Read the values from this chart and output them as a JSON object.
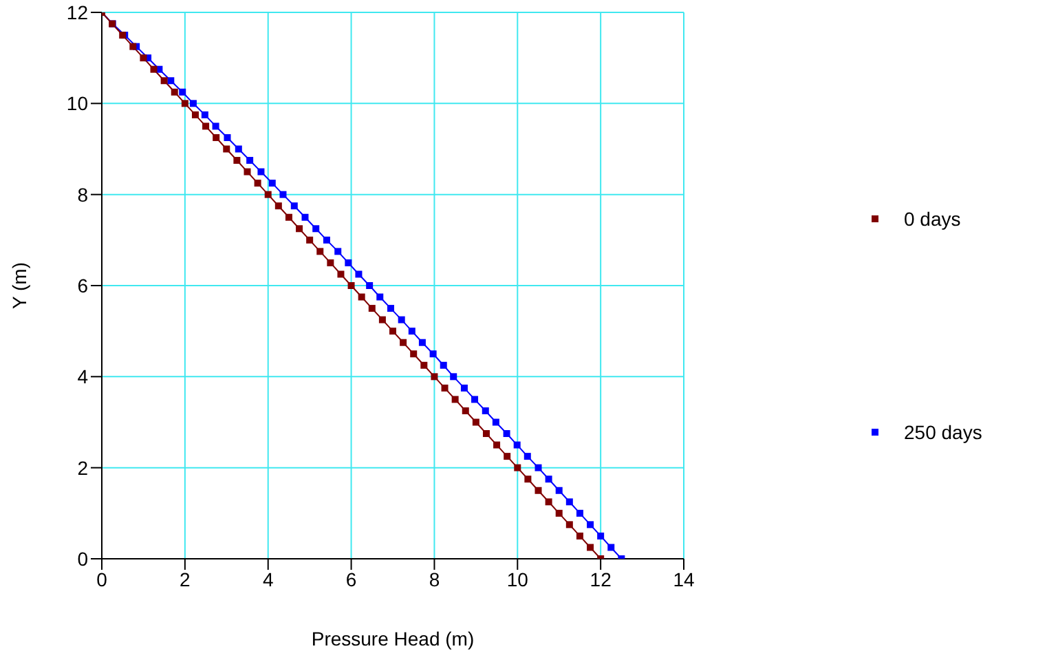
{
  "chart_data": {
    "type": "line",
    "xlabel": "Pressure Head (m)",
    "ylabel": "Y (m)",
    "xlim": [
      0,
      14
    ],
    "ylim": [
      0,
      12
    ],
    "xticks": [
      0,
      2,
      4,
      6,
      8,
      10,
      12,
      14
    ],
    "yticks": [
      0,
      2,
      4,
      6,
      8,
      10,
      12
    ],
    "grid": true,
    "legend": "right",
    "marker": "square",
    "series": [
      {
        "name": "0 days",
        "color": "#800000",
        "x": [
          0,
          0.25,
          0.5,
          0.75,
          1,
          1.25,
          1.5,
          1.75,
          2,
          2.25,
          2.5,
          2.75,
          3,
          3.25,
          3.5,
          3.75,
          4,
          4.25,
          4.5,
          4.75,
          5,
          5.25,
          5.5,
          5.75,
          6,
          6.25,
          6.5,
          6.75,
          7,
          7.25,
          7.5,
          7.75,
          8,
          8.25,
          8.5,
          8.75,
          9,
          9.25,
          9.5,
          9.75,
          10,
          10.25,
          10.5,
          10.75,
          11,
          11.25,
          11.5,
          11.75,
          12
        ],
        "values": [
          12,
          11.75,
          11.5,
          11.25,
          11,
          10.75,
          10.5,
          10.25,
          10,
          9.75,
          9.5,
          9.25,
          9,
          8.75,
          8.5,
          8.25,
          8,
          7.75,
          7.5,
          7.25,
          7,
          6.75,
          6.5,
          6.25,
          6,
          5.75,
          5.5,
          5.25,
          5,
          4.75,
          4.5,
          4.25,
          4,
          3.75,
          3.5,
          3.25,
          3,
          2.75,
          2.5,
          2.25,
          2,
          1.75,
          1.5,
          1.25,
          1,
          0.75,
          0.5,
          0.25,
          0
        ]
      },
      {
        "name": "250 days",
        "color": "#0000ff",
        "x": [
          0,
          0.26,
          0.55,
          0.83,
          1.11,
          1.38,
          1.66,
          1.94,
          2.2,
          2.48,
          2.74,
          3.02,
          3.29,
          3.56,
          3.83,
          4.1,
          4.36,
          4.63,
          4.89,
          5.15,
          5.41,
          5.68,
          5.93,
          6.18,
          6.44,
          6.69,
          6.95,
          7.21,
          7.46,
          7.71,
          7.97,
          8.22,
          8.46,
          8.72,
          8.97,
          9.23,
          9.48,
          9.74,
          9.99,
          10.24,
          10.5,
          10.75,
          11,
          11.25,
          11.5,
          11.75,
          12,
          12.25,
          12.5
        ],
        "values": [
          12,
          11.75,
          11.5,
          11.25,
          11,
          10.75,
          10.5,
          10.25,
          10,
          9.75,
          9.5,
          9.25,
          9,
          8.75,
          8.5,
          8.25,
          8,
          7.75,
          7.5,
          7.25,
          7,
          6.75,
          6.5,
          6.25,
          6,
          5.75,
          5.5,
          5.25,
          5,
          4.75,
          4.5,
          4.25,
          4,
          3.75,
          3.5,
          3.25,
          3,
          2.75,
          2.5,
          2.25,
          2,
          1.75,
          1.5,
          1.25,
          1,
          0.75,
          0.5,
          0.25,
          0
        ]
      }
    ]
  }
}
